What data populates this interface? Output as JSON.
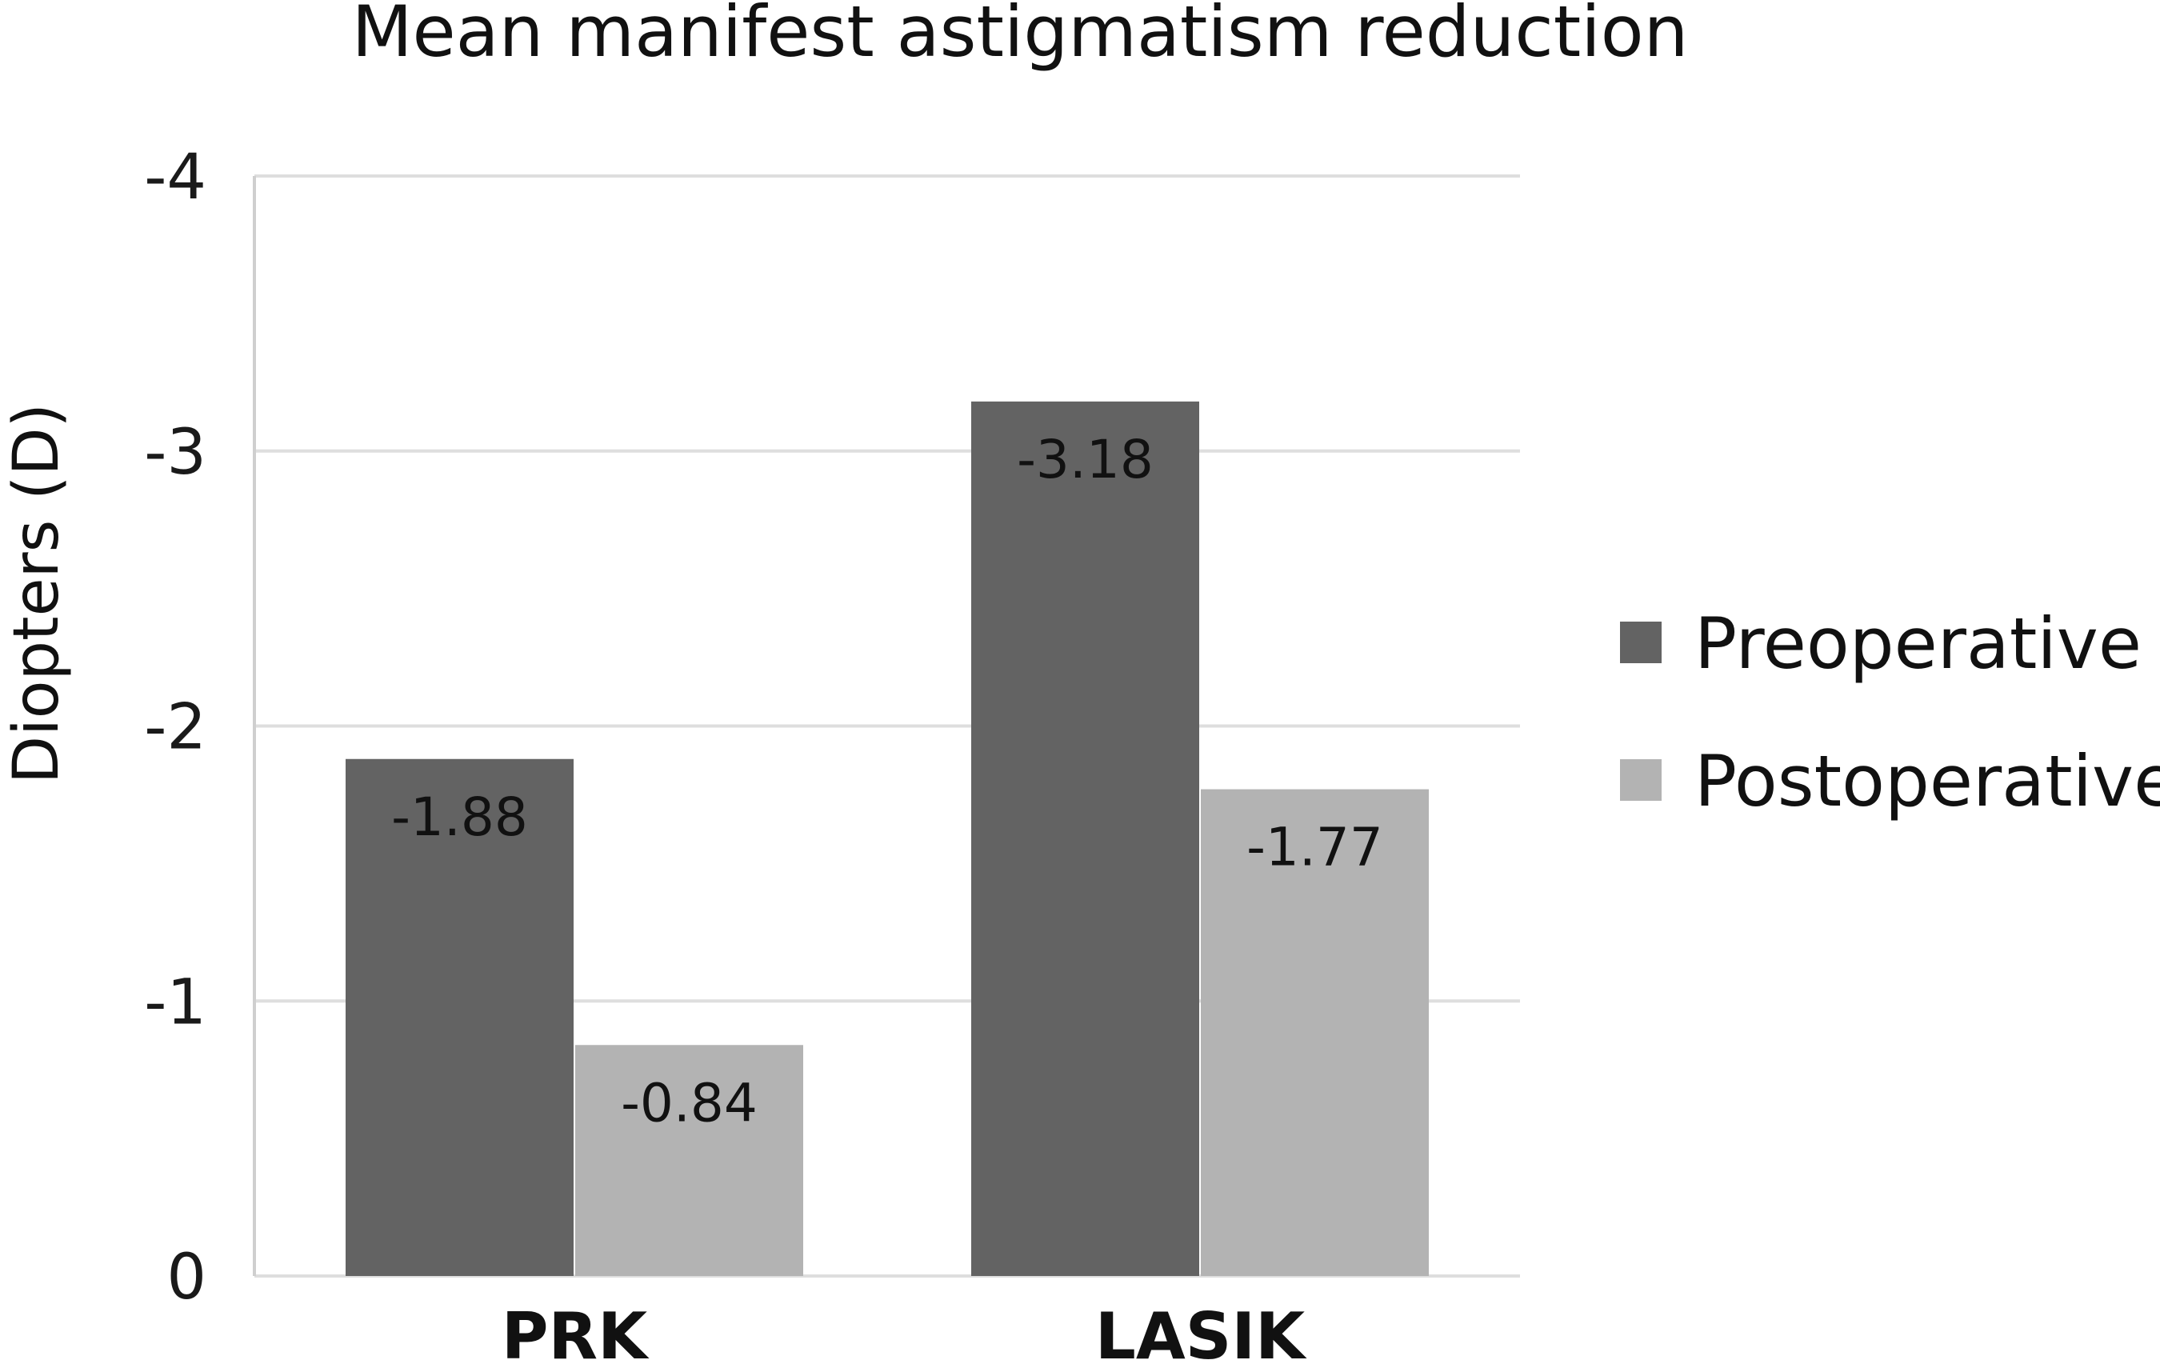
{
  "chart_data": {
    "type": "bar",
    "title": "Mean manifest astigmatism reduction",
    "xlabel": "",
    "ylabel": "Diopters (D)",
    "categories": [
      "PRK",
      "LASIK"
    ],
    "series": [
      {
        "name": "Preoperative",
        "values": [
          -1.88,
          -3.18
        ],
        "labels": [
          "-1.88",
          "-3.18"
        ],
        "color": "#636363"
      },
      {
        "name": "Postoperative",
        "values": [
          -0.84,
          -1.77
        ],
        "labels": [
          "-0.84",
          "-1.77"
        ],
        "color": "#b3b3b3"
      }
    ],
    "ylim": [
      0,
      -4
    ],
    "y_axis_inverted": true,
    "yticks": [
      0,
      -1,
      -2,
      -3,
      -4
    ],
    "ytick_labels": [
      "0",
      "-1",
      "-2",
      "-3",
      "-4"
    ],
    "grid": true,
    "legend": "right"
  }
}
